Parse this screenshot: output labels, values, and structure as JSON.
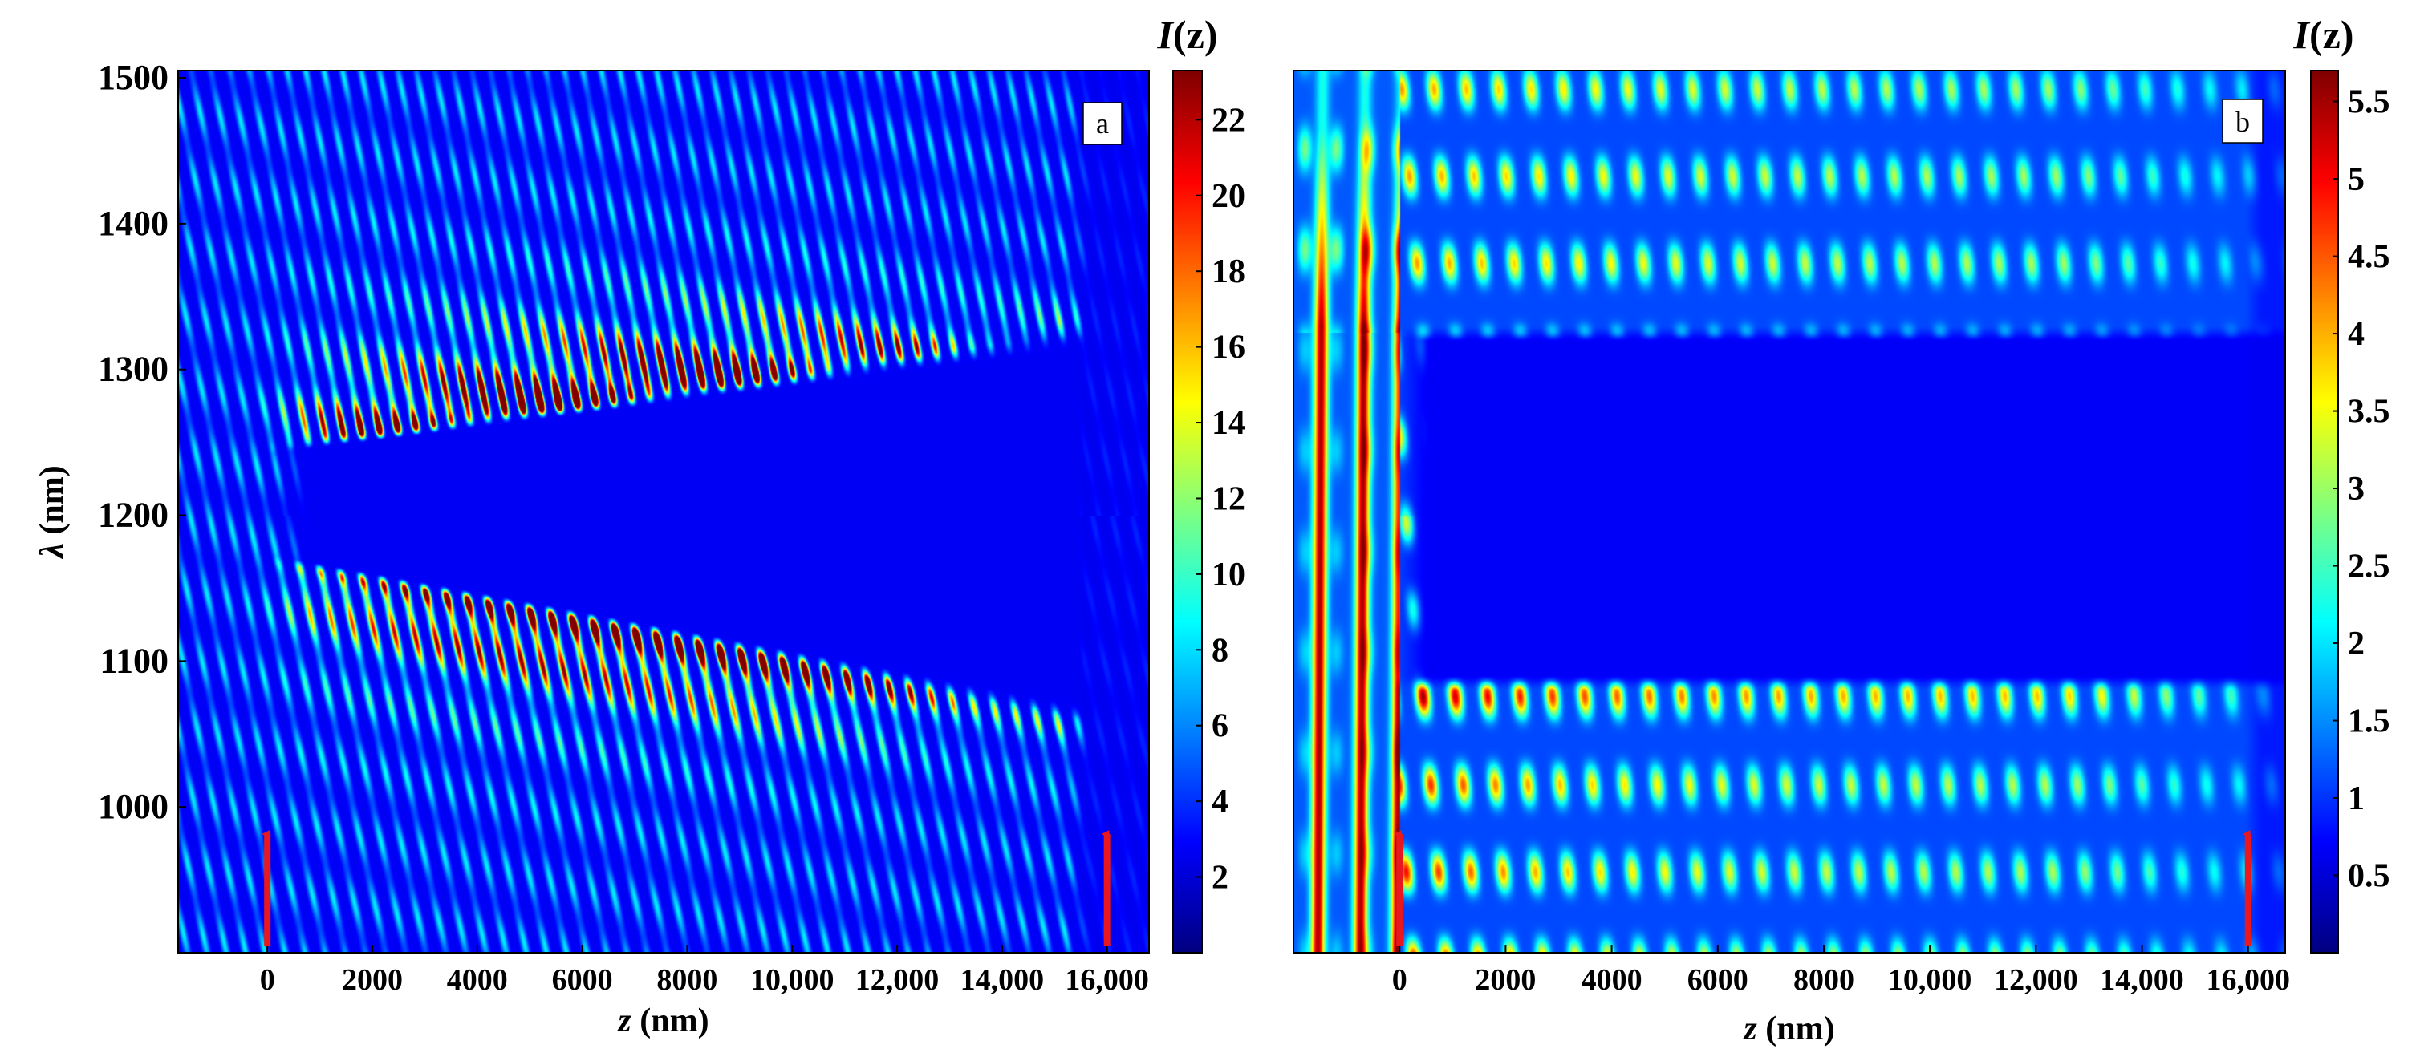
{
  "chart_data": [
    {
      "type": "heatmap",
      "panel_label": "a",
      "xlabel_var": "z",
      "xlabel_unit": " (nm)",
      "ylabel_var": "λ",
      "ylabel_unit": " (nm)",
      "xlim": [
        -1700,
        16800
      ],
      "ylim": [
        900,
        1505
      ],
      "x_ticks": [
        {
          "value": 0,
          "label": "0"
        },
        {
          "value": 2000,
          "label": "2000"
        },
        {
          "value": 4000,
          "label": "4000"
        },
        {
          "value": 6000,
          "label": "6000"
        },
        {
          "value": 8000,
          "label": "8000"
        },
        {
          "value": 10000,
          "label": "10,000"
        },
        {
          "value": 12000,
          "label": "12,000"
        },
        {
          "value": 14000,
          "label": "14,000"
        },
        {
          "value": 16000,
          "label": "16,000"
        }
      ],
      "y_ticks": [
        {
          "value": 1000,
          "label": "1000"
        },
        {
          "value": 1100,
          "label": "1100"
        },
        {
          "value": 1200,
          "label": "1200"
        },
        {
          "value": 1300,
          "label": "1300"
        },
        {
          "value": 1400,
          "label": "1400"
        },
        {
          "value": 1500,
          "label": "1500"
        }
      ],
      "colorbar": {
        "title_var": "I",
        "title_arg": "(z)",
        "min": 0,
        "max": 23.3,
        "ticks": [
          2,
          4,
          6,
          8,
          10,
          12,
          14,
          16,
          18,
          20,
          22
        ],
        "tick_labels": [
          "2",
          "4",
          "6",
          "8",
          "10",
          "12",
          "14",
          "16",
          "18",
          "20",
          "22"
        ]
      },
      "field": {
        "bandgap_lambda_start": [
          1245,
          1170
        ],
        "bandgap_lambda_end": [
          1325,
          1060
        ],
        "peak_intensity": 22.5,
        "peak_band_edges": [
          1290,
          1095
        ],
        "structure_z_range": [
          0,
          16000
        ]
      },
      "arrows_at_z": [
        0,
        16000
      ],
      "arrow_color": "#e8181e"
    },
    {
      "type": "heatmap",
      "panel_label": "b",
      "xlabel_var": "z",
      "xlabel_unit": " (nm)",
      "ylabel_var": "",
      "ylabel_unit": "",
      "xlim": [
        -2000,
        16700
      ],
      "ylim": [
        900,
        1505
      ],
      "x_ticks": [
        {
          "value": 0,
          "label": "0"
        },
        {
          "value": 2000,
          "label": "2000"
        },
        {
          "value": 4000,
          "label": "4000"
        },
        {
          "value": 6000,
          "label": "6000"
        },
        {
          "value": 8000,
          "label": "8000"
        },
        {
          "value": 10000,
          "label": "10,000"
        },
        {
          "value": 12000,
          "label": "12,000"
        },
        {
          "value": 14000,
          "label": "14,000"
        },
        {
          "value": 16000,
          "label": "16,000"
        }
      ],
      "y_ticks": [],
      "colorbar": {
        "title_var": "I",
        "title_arg": "(z)",
        "min": 0,
        "max": 5.7,
        "ticks": [
          0.5,
          1,
          1.5,
          2,
          2.5,
          3,
          3.5,
          4,
          4.5,
          5,
          5.5
        ],
        "tick_labels": [
          "0.5",
          "1",
          "1.5",
          "2",
          "2.5",
          "3",
          "3.5",
          "4",
          "4.5",
          "5",
          "5.5"
        ]
      },
      "field": {
        "bandgap_lambda": [
          1085,
          1325
        ],
        "peak_intensity": 5.3,
        "incident_stripes_z": [
          -1500,
          -700,
          0
        ],
        "structure_z_range": [
          0,
          16000
        ]
      },
      "arrows_at_z": [
        0,
        16000
      ],
      "arrow_color": "#e8181e"
    }
  ]
}
